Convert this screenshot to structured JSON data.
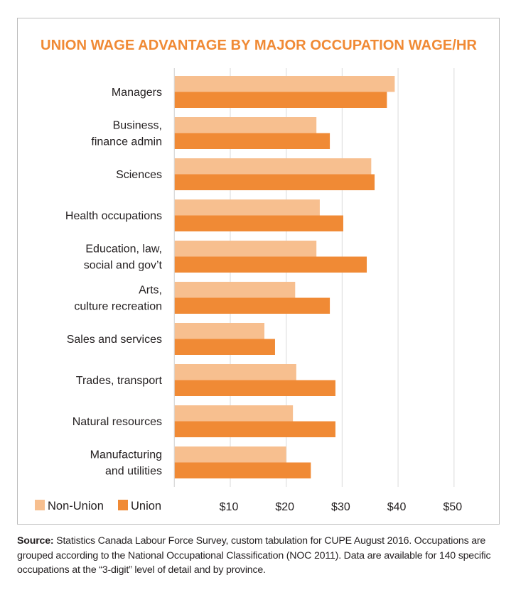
{
  "chart_data": {
    "type": "bar",
    "orientation": "horizontal",
    "title": "UNION WAGE ADVANTAGE BY MAJOR OCCUPATION WAGE/HR",
    "categories": [
      [
        "Managers"
      ],
      [
        "Business,",
        "finance admin"
      ],
      [
        "Sciences"
      ],
      [
        "Health occupations"
      ],
      [
        "Education, law,",
        "social and gov’t"
      ],
      [
        "Arts,",
        "culture recreation"
      ],
      [
        "Sales and services"
      ],
      [
        "Trades, transport"
      ],
      [
        "Natural resources"
      ],
      [
        "Manufacturing",
        "and utilities"
      ]
    ],
    "series": [
      {
        "name": "Non-Union",
        "color": "#F7BF8F",
        "values": [
          39.4,
          25.4,
          35.2,
          26.0,
          25.4,
          21.6,
          16.1,
          21.8,
          21.2,
          20.0
        ]
      },
      {
        "name": "Union",
        "color": "#F08A35",
        "values": [
          38.0,
          27.8,
          35.8,
          30.2,
          34.4,
          27.8,
          18.0,
          28.8,
          28.8,
          24.4
        ]
      }
    ],
    "xlim": [
      0,
      58
    ],
    "xticks": [
      10,
      20,
      30,
      40,
      50
    ],
    "xtick_labels": [
      "$10",
      "$20",
      "$30",
      "$40",
      "$50"
    ],
    "grid": true,
    "legend_placement": "bottom-left",
    "title_color": "#F08A35"
  },
  "source": {
    "label": "Source:",
    "text": " Statistics Canada Labour Force Survey, custom tabulation for CUPE August 2016. Occupations are grouped according to the National Occupational Classification (NOC 2011). Data are available for 140 specific occupations at the “3-digit” level of detail and by province."
  }
}
